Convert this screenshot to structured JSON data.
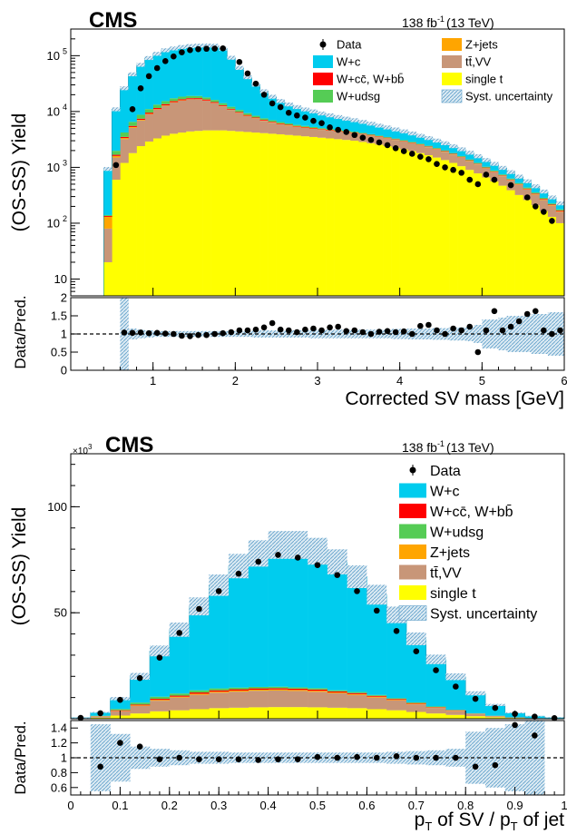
{
  "colors": {
    "wc": "#00ccee",
    "wccbb": "#ff0000",
    "wudsg": "#55cc55",
    "zjets": "#ffa500",
    "ttvv": "#c89678",
    "singlet": "#ffff00",
    "syst": "#9ecae1",
    "data": "#000000"
  },
  "chart_data": [
    {
      "type": "bar",
      "experiment": "CMS",
      "lumi": "138 fb",
      "lumi_exp": "-1",
      "energy": "(13 TeV)",
      "ylabel": "(OS-SS) Yield",
      "ratio_label": "Data/Pred.",
      "xlabel": "Corrected SV mass [GeV]",
      "xlim": [
        0,
        6
      ],
      "ylim": [
        5,
        300000
      ],
      "ylog": true,
      "ratio_ylim": [
        0,
        2
      ],
      "x_ticks": [
        "1",
        "2",
        "3",
        "4",
        "5",
        "6"
      ],
      "y_ticks": [
        "10",
        "10",
        "10",
        "10",
        "10"
      ],
      "y_tick_exps": [
        "",
        "2",
        "3",
        "4",
        "5"
      ],
      "ratio_ticks": [
        "0",
        "0.5",
        "1",
        "1.5",
        "2"
      ],
      "legend": [
        {
          "label": "Data",
          "key": "data"
        },
        {
          "label": "W+c",
          "key": "wc"
        },
        {
          "label": "W+cc̄, W+bb̄",
          "key": "wccbb"
        },
        {
          "label": "W+udsg",
          "key": "wudsg"
        },
        {
          "label": "Z+jets",
          "key": "zjets"
        },
        {
          "label": "tt̄,VV",
          "key": "ttvv"
        },
        {
          "label": "single t",
          "key": "singlet"
        },
        {
          "label": "Syst. uncertainty",
          "key": "syst"
        }
      ],
      "bin_edges": [
        0.4,
        0.5,
        0.6,
        0.7,
        0.8,
        0.9,
        1.0,
        1.1,
        1.2,
        1.3,
        1.4,
        1.5,
        1.6,
        1.7,
        1.8,
        1.9,
        2.0,
        2.1,
        2.2,
        2.3,
        2.4,
        2.5,
        2.6,
        2.7,
        2.8,
        2.9,
        3.0,
        3.1,
        3.2,
        3.3,
        3.4,
        3.5,
        3.6,
        3.7,
        3.8,
        3.9,
        4.0,
        4.1,
        4.2,
        4.3,
        4.4,
        4.5,
        4.6,
        4.7,
        4.8,
        4.9,
        5.0,
        5.1,
        5.2,
        5.3,
        5.4,
        5.5,
        5.6,
        5.7,
        5.8,
        5.9,
        6.0
      ],
      "series_stack": [
        {
          "name": "single t",
          "key": "singlet",
          "values": [
            20,
            600,
            1200,
            1800,
            2400,
            2900,
            3300,
            3700,
            4000,
            4200,
            4400,
            4500,
            4600,
            4600,
            4600,
            4500,
            4400,
            4300,
            4200,
            4100,
            4000,
            3900,
            3800,
            3700,
            3600,
            3500,
            3400,
            3300,
            3200,
            3100,
            3000,
            2850,
            2700,
            2550,
            2400,
            2250,
            2100,
            1950,
            1800,
            1650,
            1500,
            1350,
            1200,
            1050,
            900,
            780,
            660,
            560,
            470,
            390,
            320,
            260,
            210,
            165,
            130,
            100
          ]
        },
        {
          "name": "tt̄,VV",
          "key": "ttvv",
          "values": [
            60,
            900,
            2000,
            3300,
            4500,
            6000,
            7500,
            9000,
            10500,
            11500,
            12000,
            12000,
            11000,
            9500,
            7800,
            6200,
            5000,
            4000,
            3300,
            2700,
            2300,
            2000,
            1800,
            1600,
            1500,
            1400,
            1300,
            1250,
            1200,
            1150,
            1100,
            1050,
            1000,
            950,
            900,
            850,
            800,
            750,
            700,
            650,
            600,
            550,
            500,
            450,
            400,
            350,
            300,
            260,
            225,
            195,
            165,
            140,
            115,
            95,
            75,
            60
          ]
        },
        {
          "name": "Z+jets",
          "key": "zjets",
          "values": [
            50,
            100,
            150,
            180,
            200,
            210,
            220,
            220,
            210,
            200,
            190,
            180,
            170,
            160,
            150,
            140,
            130,
            120,
            110,
            100,
            95,
            90,
            85,
            80,
            75,
            70,
            65,
            60,
            58,
            55,
            52,
            50,
            48,
            45,
            42,
            40,
            38,
            35,
            32,
            30,
            28,
            25,
            22,
            20,
            18,
            16,
            14,
            12,
            11,
            10,
            9,
            8,
            7,
            6,
            5,
            4
          ]
        },
        {
          "name": "W+cc̄, W+bb̄",
          "key": "wccbb",
          "values": [
            5,
            80,
            160,
            250,
            350,
            450,
            550,
            650,
            700,
            750,
            750,
            700,
            650,
            550,
            450,
            380,
            320,
            270,
            230,
            200,
            175,
            160,
            145,
            130,
            120,
            110,
            100,
            95,
            90,
            85,
            80,
            75,
            70,
            65,
            60,
            55,
            50,
            45,
            40,
            38,
            35,
            32,
            28,
            25,
            22,
            20,
            18,
            16,
            14,
            12,
            10,
            9,
            8,
            7,
            6,
            5
          ]
        },
        {
          "name": "W+udsg",
          "key": "wudsg",
          "values": [
            5,
            300,
            700,
            1000,
            1300,
            1500,
            1700,
            1800,
            1850,
            1800,
            1700,
            1600,
            1450,
            1300,
            1100,
            950,
            800,
            650,
            550,
            460,
            390,
            330,
            290,
            250,
            220,
            200,
            180,
            165,
            150,
            140,
            130,
            120,
            110,
            100,
            95,
            90,
            85,
            80,
            75,
            70,
            65,
            60,
            55,
            50,
            45,
            40,
            35,
            30,
            27,
            24,
            21,
            18,
            15,
            12,
            10,
            8
          ]
        },
        {
          "name": "W+c",
          "key": "wc",
          "values": [
            800,
            9000,
            22000,
            40000,
            60000,
            80000,
            95000,
            110000,
            118000,
            125000,
            130000,
            133000,
            135000,
            135000,
            120000,
            80000,
            50000,
            32000,
            22000,
            15500,
            11500,
            9000,
            7300,
            6300,
            5400,
            4800,
            4200,
            3700,
            3300,
            2950,
            2650,
            2400,
            2150,
            1900,
            1700,
            1500,
            1350,
            1200,
            1050,
            920,
            800,
            700,
            600,
            520,
            450,
            380,
            330,
            280,
            235,
            195,
            160,
            130,
            105,
            85,
            65,
            50
          ]
        }
      ],
      "data_x": [
        0.55,
        0.75,
        0.85,
        0.95,
        1.05,
        1.15,
        1.25,
        1.35,
        1.45,
        1.55,
        1.65,
        1.75,
        1.85,
        2.05,
        2.15,
        2.25,
        2.35,
        2.45,
        2.55,
        2.65,
        2.75,
        2.85,
        2.95,
        3.05,
        3.15,
        3.25,
        3.35,
        3.45,
        3.55,
        3.65,
        3.75,
        3.85,
        3.95,
        4.05,
        4.15,
        4.25,
        4.35,
        4.45,
        4.55,
        4.65,
        4.75,
        4.85,
        4.95,
        5.05,
        5.15,
        5.35,
        5.55,
        5.65,
        5.75,
        5.85
      ],
      "data_y": [
        1100,
        11000,
        26000,
        43000,
        60000,
        80000,
        97000,
        115000,
        126000,
        131000,
        133000,
        134000,
        135000,
        77000,
        48000,
        31500,
        20000,
        14000,
        12000,
        9500,
        8500,
        7800,
        6800,
        6200,
        5200,
        4700,
        4300,
        3800,
        3400,
        3100,
        2800,
        2500,
        2200,
        1950,
        1750,
        1550,
        1400,
        1150,
        1000,
        900,
        800,
        600,
        500,
        740,
        600,
        480,
        290,
        200,
        160,
        110
      ],
      "ratio_x": [
        0.65,
        0.75,
        0.85,
        0.95,
        1.05,
        1.15,
        1.25,
        1.35,
        1.45,
        1.55,
        1.65,
        1.75,
        1.85,
        1.95,
        2.05,
        2.15,
        2.25,
        2.35,
        2.45,
        2.55,
        2.65,
        2.75,
        2.85,
        2.95,
        3.05,
        3.15,
        3.25,
        3.35,
        3.45,
        3.55,
        3.65,
        3.75,
        3.85,
        3.95,
        4.05,
        4.15,
        4.25,
        4.35,
        4.45,
        4.55,
        4.65,
        4.75,
        4.85,
        4.95,
        5.05,
        5.15,
        5.25,
        5.35,
        5.45,
        5.55,
        5.65,
        5.75,
        5.85,
        5.95
      ],
      "ratio_y": [
        1.04,
        1.03,
        1.04,
        1.02,
        1.03,
        1.01,
        1.0,
        0.95,
        0.94,
        0.97,
        0.97,
        1.0,
        1.02,
        1.05,
        1.1,
        1.1,
        1.12,
        1.18,
        1.3,
        1.12,
        1.1,
        1.05,
        1.12,
        1.15,
        1.1,
        1.18,
        1.2,
        1.08,
        1.1,
        1.05,
        1.0,
        1.06,
        1.08,
        1.05,
        1.07,
        1.0,
        1.22,
        1.25,
        1.1,
        1.0,
        1.15,
        1.1,
        1.2,
        0.5,
        1.1,
        1.63,
        1.1,
        1.2,
        1.35,
        1.55,
        1.63,
        1.1,
        1.0,
        1.1
      ],
      "ratio_unc": [
        1.0,
        0.15,
        0.12,
        0.1,
        0.08,
        0.08,
        0.08,
        0.08,
        0.08,
        0.08,
        0.08,
        0.08,
        0.08,
        0.08,
        0.08,
        0.08,
        0.1,
        0.1,
        0.1,
        0.1,
        0.1,
        0.1,
        0.1,
        0.12,
        0.12,
        0.12,
        0.12,
        0.12,
        0.12,
        0.12,
        0.12,
        0.12,
        0.12,
        0.14,
        0.14,
        0.15,
        0.15,
        0.15,
        0.16,
        0.16,
        0.18,
        0.18,
        0.2,
        0.25,
        0.4,
        0.4,
        0.45,
        0.5,
        0.5,
        0.5,
        0.55,
        0.55,
        0.6,
        0.6
      ]
    },
    {
      "type": "bar",
      "experiment": "CMS",
      "scale_label": "×10",
      "scale_exp": "3",
      "lumi": "138 fb",
      "lumi_exp": "-1",
      "energy": "(13 TeV)",
      "ylabel": "(OS-SS) Yield",
      "ratio_label": "Data/Pred.",
      "xlabel_parts": [
        "p",
        "T",
        " of SV / p",
        "T",
        " of jet"
      ],
      "xlim": [
        0,
        1
      ],
      "ylim": [
        0,
        125
      ],
      "ylog": false,
      "ratio_ylim": [
        0.5,
        1.5
      ],
      "x_ticks": [
        "0",
        "0.1",
        "0.2",
        "0.3",
        "0.4",
        "0.5",
        "0.6",
        "0.7",
        "0.8",
        "0.9",
        "1"
      ],
      "y_ticks": [
        "50",
        "100"
      ],
      "y_tick_values": [
        50,
        100
      ],
      "ratio_ticks": [
        "0.6",
        "0.8",
        "1",
        "1.2",
        "1.4"
      ],
      "ratio_tick_values": [
        0.6,
        0.8,
        1.0,
        1.2,
        1.4
      ],
      "legend": [
        {
          "label": "Data",
          "key": "data"
        },
        {
          "label": "W+c",
          "key": "wc"
        },
        {
          "label": "W+cc̄, W+bb̄",
          "key": "wccbb"
        },
        {
          "label": "W+udsg",
          "key": "wudsg"
        },
        {
          "label": "Z+jets",
          "key": "zjets"
        },
        {
          "label": "tt̄,VV",
          "key": "ttvv"
        },
        {
          "label": "single t",
          "key": "singlet"
        },
        {
          "label": "Syst. uncertainty",
          "key": "syst"
        }
      ],
      "bin_edges": [
        0.0,
        0.04,
        0.08,
        0.12,
        0.16,
        0.2,
        0.24,
        0.28,
        0.32,
        0.36,
        0.4,
        0.44,
        0.48,
        0.52,
        0.56,
        0.6,
        0.64,
        0.68,
        0.72,
        0.76,
        0.8,
        0.84,
        0.88,
        0.92,
        0.96,
        1.0
      ],
      "series_stack": [
        {
          "name": "single t",
          "key": "singlet",
          "values": [
            0.1,
            0.5,
            1.5,
            2.5,
            3.5,
            4.0,
            4.5,
            5.0,
            5.2,
            5.4,
            5.5,
            5.5,
            5.4,
            5.2,
            5.0,
            4.5,
            4.0,
            3.2,
            2.5,
            1.8,
            1.2,
            0.7,
            0.4,
            0.2,
            0.1
          ]
        },
        {
          "name": "tt̄,VV",
          "key": "ttvv",
          "values": [
            0.05,
            0.5,
            2.0,
            3.5,
            5.0,
            6.0,
            6.8,
            7.3,
            7.6,
            7.8,
            7.8,
            7.6,
            7.3,
            6.8,
            6.2,
            5.5,
            4.6,
            3.6,
            2.6,
            1.8,
            1.0,
            0.5,
            0.25,
            0.1,
            0.05
          ]
        },
        {
          "name": "Z+jets",
          "key": "zjets",
          "values": [
            0,
            0.1,
            0.2,
            0.3,
            0.4,
            0.4,
            0.5,
            0.5,
            0.5,
            0.5,
            0.5,
            0.5,
            0.5,
            0.4,
            0.4,
            0.4,
            0.3,
            0.3,
            0.2,
            0.2,
            0.1,
            0.1,
            0,
            0,
            0
          ]
        },
        {
          "name": "W+cc̄, W+bb̄",
          "key": "wccbb",
          "values": [
            0,
            0.1,
            0.3,
            0.4,
            0.5,
            0.5,
            0.6,
            0.6,
            0.6,
            0.6,
            0.6,
            0.6,
            0.6,
            0.5,
            0.5,
            0.4,
            0.4,
            0.3,
            0.2,
            0.2,
            0.1,
            0.05,
            0,
            0,
            0
          ]
        },
        {
          "name": "W+udsg",
          "key": "wudsg",
          "values": [
            0,
            0.2,
            0.6,
            0.9,
            1.0,
            1.0,
            1.0,
            0.9,
            0.8,
            0.7,
            0.7,
            0.6,
            0.6,
            0.5,
            0.5,
            0.4,
            0.4,
            0.3,
            0.3,
            0.2,
            0.1,
            0.05,
            0,
            0,
            0
          ]
        },
        {
          "name": "W+c",
          "key": "wc",
          "values": [
            0.3,
            1.6,
            4.9,
            12.4,
            21.6,
            30.1,
            39.6,
            48.7,
            57.3,
            63.0,
            66.9,
            67.2,
            64.6,
            60.6,
            54.4,
            47.3,
            39.3,
            30.0,
            22.2,
            15.6,
            9.5,
            5.1,
            2.1,
            0.9,
            0.4
          ]
        }
      ],
      "data_x": [
        0.02,
        0.06,
        0.1,
        0.14,
        0.18,
        0.22,
        0.26,
        0.3,
        0.34,
        0.38,
        0.42,
        0.46,
        0.5,
        0.54,
        0.58,
        0.62,
        0.66,
        0.7,
        0.74,
        0.78,
        0.82,
        0.86,
        0.9,
        0.94,
        0.98
      ],
      "data_y": [
        0.4,
        2.6,
        8.9,
        19.2,
        28.8,
        40.5,
        51.8,
        60.2,
        68.4,
        74.1,
        77.3,
        76.0,
        72.5,
        67.8,
        60.2,
        51.0,
        41.4,
        31.8,
        22.9,
        15.2,
        9.4,
        5.1,
        2.3,
        1.0,
        0.3
      ],
      "ratio_x": [
        0.06,
        0.1,
        0.14,
        0.18,
        0.22,
        0.26,
        0.3,
        0.34,
        0.38,
        0.42,
        0.46,
        0.5,
        0.54,
        0.58,
        0.62,
        0.66,
        0.7,
        0.74,
        0.78,
        0.82,
        0.86,
        0.9,
        0.94
      ],
      "ratio_y": [
        0.88,
        1.2,
        1.15,
        0.98,
        1.0,
        0.98,
        0.98,
        0.98,
        0.97,
        0.98,
        0.98,
        1.01,
        1.0,
        1.01,
        1.0,
        1.02,
        1.0,
        1.0,
        1.0,
        0.88,
        0.9,
        1.44,
        1.3
      ],
      "ratio_unc": [
        0.45,
        0.32,
        0.15,
        0.12,
        0.1,
        0.08,
        0.08,
        0.07,
        0.07,
        0.07,
        0.07,
        0.07,
        0.07,
        0.07,
        0.07,
        0.08,
        0.09,
        0.1,
        0.12,
        0.35,
        0.4,
        0.45,
        0.5
      ]
    }
  ]
}
